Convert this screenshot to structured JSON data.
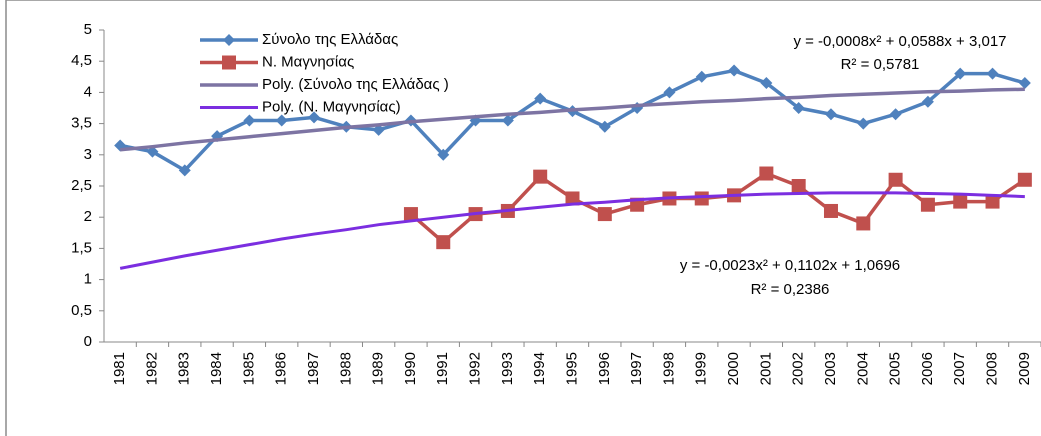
{
  "chart_data": {
    "type": "line",
    "categories": [
      "1981",
      "1982",
      "1983",
      "1984",
      "1985",
      "1986",
      "1987",
      "1988",
      "1989",
      "1990",
      "1991",
      "1992",
      "1993",
      "1994",
      "1995",
      "1996",
      "1997",
      "1998",
      "1999",
      "2000",
      "2001",
      "2002",
      "2003",
      "2004",
      "2005",
      "2006",
      "2007",
      "2008",
      "2009"
    ],
    "series": [
      {
        "name": "Σύνολο της Ελλάδας",
        "color": "#4f81bd",
        "marker": "diamond",
        "width": 3.5,
        "values": [
          3.15,
          3.05,
          2.75,
          3.3,
          3.55,
          3.55,
          3.6,
          3.45,
          3.4,
          3.55,
          3.0,
          3.55,
          3.55,
          3.9,
          3.7,
          3.45,
          3.75,
          4.0,
          4.25,
          4.35,
          4.15,
          3.75,
          3.65,
          3.5,
          3.65,
          3.85,
          4.3,
          4.3,
          4.15
        ]
      },
      {
        "name": "Ν. Μαγνησίας",
        "color": "#c0504d",
        "marker": "square",
        "width": 3.5,
        "values": [
          null,
          null,
          null,
          null,
          null,
          null,
          null,
          null,
          null,
          2.05,
          1.6,
          2.05,
          2.1,
          2.65,
          2.3,
          2.05,
          2.2,
          2.3,
          2.3,
          2.35,
          2.7,
          2.5,
          2.1,
          1.9,
          2.6,
          2.2,
          2.25,
          2.25,
          2.6
        ]
      },
      {
        "name": "Poly. (Σύνολο της Ελλάδας )",
        "color": "#7d74a3",
        "marker": "none",
        "width": 3.5,
        "values": [
          3.08,
          3.13,
          3.19,
          3.24,
          3.29,
          3.34,
          3.39,
          3.44,
          3.48,
          3.53,
          3.57,
          3.61,
          3.65,
          3.68,
          3.72,
          3.75,
          3.79,
          3.82,
          3.85,
          3.87,
          3.9,
          3.92,
          3.95,
          3.97,
          3.99,
          4.01,
          4.02,
          4.04,
          4.05
        ]
      },
      {
        "name": "Poly. (Ν. Μαγνησίας)",
        "color": "#7b2ee0",
        "marker": "none",
        "width": 3,
        "values": [
          1.18,
          1.28,
          1.38,
          1.47,
          1.56,
          1.65,
          1.73,
          1.8,
          1.88,
          1.94,
          2.0,
          2.06,
          2.11,
          2.16,
          2.21,
          2.24,
          2.28,
          2.31,
          2.33,
          2.35,
          2.37,
          2.38,
          2.39,
          2.39,
          2.39,
          2.38,
          2.37,
          2.35,
          2.33
        ]
      }
    ],
    "annotations": [
      "y = -0,0008x² + 0,0588x + 3,017",
      "R² = 0,5781",
      "y = -0,0023x² + 0,1102x + 1,0696",
      "R² = 0,2386"
    ],
    "ylim": [
      0,
      5
    ],
    "yticks": [
      0,
      {
        "value": 0.5,
        "label": "0,5"
      },
      1,
      {
        "value": 1.5,
        "label": "1,5"
      },
      2,
      {
        "value": 2.5,
        "label": "2,5"
      },
      3,
      {
        "value": 3.5,
        "label": "3,5"
      },
      4,
      {
        "value": 4.5,
        "label": "4,5"
      },
      5
    ],
    "grid": false
  }
}
